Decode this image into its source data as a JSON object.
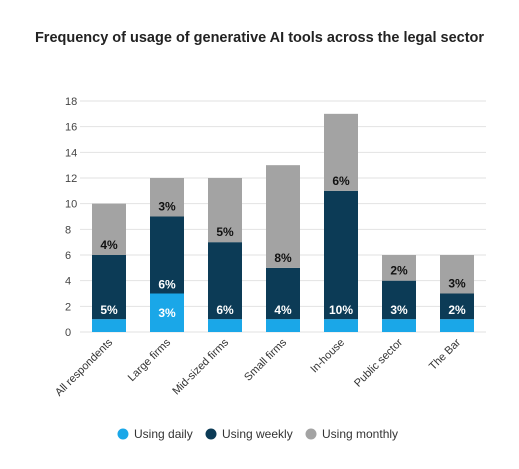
{
  "chart_data": {
    "type": "bar",
    "stacked": true,
    "title": "Frequency of usage of generative AI tools across the legal sector",
    "categories": [
      "All respondents",
      "Large firms",
      "Mid-sized firms",
      "Small firms",
      "In-house",
      "Public sector",
      "The Bar"
    ],
    "series": [
      {
        "name": "Using daily",
        "color": "#1aa7e8",
        "values": [
          1,
          3,
          1,
          1,
          1,
          1,
          1
        ],
        "labels": [
          "",
          "3%",
          "",
          "",
          "",
          "",
          ""
        ]
      },
      {
        "name": "Using weekly",
        "color": "#0c3b56",
        "values": [
          5,
          6,
          6,
          4,
          10,
          3,
          2
        ],
        "labels": [
          "5%",
          "6%",
          "6%",
          "4%",
          "10%",
          "3%",
          "2%"
        ]
      },
      {
        "name": "Using monthly",
        "color": "#a3a3a3",
        "values": [
          4,
          3,
          5,
          8,
          6,
          2,
          3
        ],
        "labels": [
          "4%",
          "3%",
          "5%",
          "8%",
          "6%",
          "2%",
          "3%"
        ]
      }
    ],
    "ylim": [
      0,
      18
    ],
    "yticks": [
      0,
      2,
      4,
      6,
      8,
      10,
      12,
      14,
      16,
      18
    ],
    "grid": true,
    "legend": "bottom"
  }
}
